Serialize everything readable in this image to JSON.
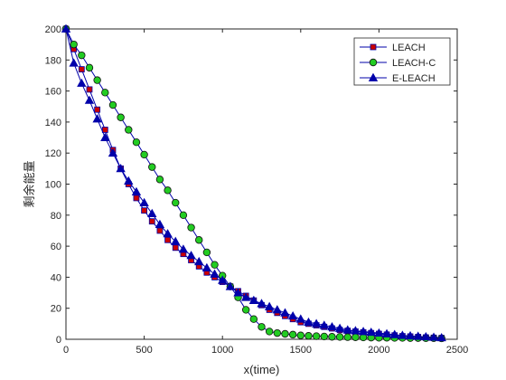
{
  "chart_data": {
    "type": "line",
    "title": "",
    "xlabel": "x(time)",
    "ylabel": "剩余能量",
    "xlim": [
      0,
      2500
    ],
    "ylim": [
      0,
      200
    ],
    "xticks": [
      0,
      500,
      1000,
      1500,
      2000,
      2500
    ],
    "yticks": [
      0,
      20,
      40,
      60,
      80,
      100,
      120,
      140,
      160,
      180,
      200
    ],
    "grid": false,
    "legend_position": "top-right",
    "series": [
      {
        "name": "LEACH",
        "color": "#0000aa",
        "marker": "square",
        "marker_fill": "#cc0000",
        "x": [
          0,
          50,
          100,
          150,
          200,
          250,
          300,
          350,
          400,
          450,
          500,
          550,
          600,
          650,
          700,
          750,
          800,
          850,
          900,
          950,
          1000,
          1050,
          1100,
          1150,
          1200,
          1250,
          1300,
          1350,
          1400,
          1450,
          1500,
          1550,
          1600,
          1650,
          1700,
          1750,
          1800,
          1850,
          1900,
          1950,
          2000,
          2050,
          2100,
          2150,
          2200,
          2250,
          2300,
          2350,
          2400
        ],
        "y": [
          200,
          187,
          174,
          161,
          148,
          135,
          122,
          110,
          100,
          91,
          83,
          76,
          70,
          64,
          59,
          55,
          51,
          47,
          43,
          40,
          37,
          34,
          31,
          28,
          25,
          22,
          19,
          17,
          15,
          13,
          11,
          10,
          9,
          8,
          7,
          6,
          5.5,
          5,
          4.5,
          4,
          3.5,
          3,
          2.5,
          2,
          1.8,
          1.5,
          1.2,
          1,
          0.8
        ]
      },
      {
        "name": "LEACH-C",
        "color": "#0000aa",
        "marker": "circle",
        "marker_fill": "#22cc22",
        "x": [
          0,
          50,
          100,
          150,
          200,
          250,
          300,
          350,
          400,
          450,
          500,
          550,
          600,
          650,
          700,
          750,
          800,
          850,
          900,
          950,
          1000,
          1050,
          1100,
          1150,
          1200,
          1250,
          1300,
          1350,
          1400,
          1450,
          1500,
          1550,
          1600,
          1650,
          1700,
          1750,
          1800,
          1850,
          1900,
          1950,
          2000,
          2050,
          2100,
          2150,
          2200,
          2250,
          2300,
          2350,
          2400
        ],
        "y": [
          200,
          190,
          183,
          175,
          167,
          159,
          151,
          143,
          135,
          127,
          119,
          111,
          103,
          96,
          88,
          80,
          72,
          64,
          56,
          48,
          41,
          34,
          27,
          19,
          13,
          8,
          5,
          4,
          3.5,
          3,
          2.5,
          2.2,
          2,
          1.8,
          1.6,
          1.5,
          1.4,
          1.3,
          1.2,
          1.1,
          1,
          1,
          0.9,
          0.9,
          0.8,
          0.8,
          0.7,
          0.7,
          0.6
        ]
      },
      {
        "name": "E-LEACH",
        "color": "#0000aa",
        "marker": "triangle",
        "marker_fill": "#0000aa",
        "x": [
          0,
          50,
          100,
          150,
          200,
          250,
          300,
          350,
          400,
          450,
          500,
          550,
          600,
          650,
          700,
          750,
          800,
          850,
          900,
          950,
          1000,
          1050,
          1100,
          1150,
          1200,
          1250,
          1300,
          1350,
          1400,
          1450,
          1500,
          1550,
          1600,
          1650,
          1700,
          1750,
          1800,
          1850,
          1900,
          1950,
          2000,
          2050,
          2100,
          2150,
          2200,
          2250,
          2300,
          2350,
          2400
        ],
        "y": [
          200,
          178,
          165,
          154,
          142,
          130,
          120,
          110,
          102,
          95,
          88,
          81,
          74,
          68,
          63,
          58,
          54,
          50,
          46,
          42,
          38,
          34,
          30,
          27,
          25,
          23,
          21,
          19,
          17,
          15,
          13,
          11,
          10,
          9,
          8,
          7,
          6,
          5.5,
          5,
          4.5,
          4,
          3.5,
          3,
          2.5,
          2.2,
          1.9,
          1.6,
          1.3,
          1
        ]
      }
    ]
  }
}
